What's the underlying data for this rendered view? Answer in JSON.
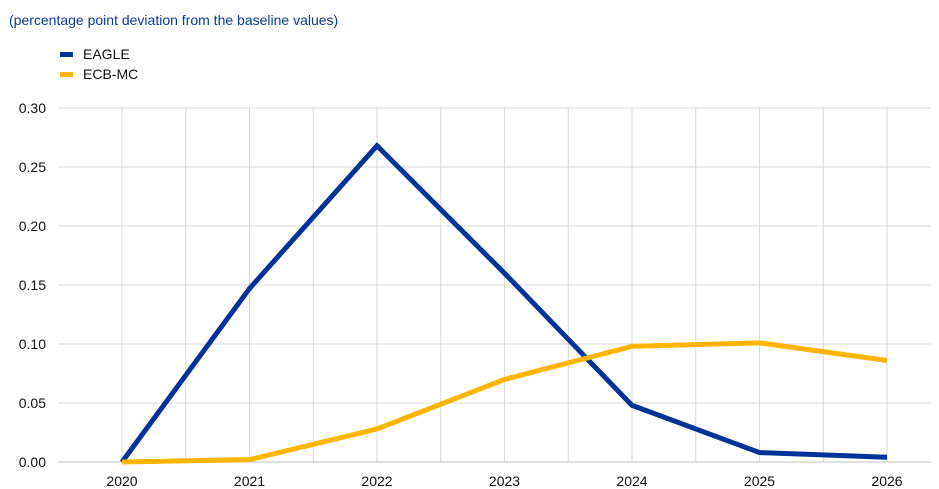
{
  "chart_data": {
    "type": "line",
    "title": "",
    "subtitle": "(percentage point deviation from the baseline values)",
    "xlabel": "",
    "ylabel": "",
    "categories": [
      "2020",
      "2021",
      "2022",
      "2023",
      "2024",
      "2025",
      "2026"
    ],
    "x_grid_ticks": [
      2020,
      2020.5,
      2021,
      2021.5,
      2022,
      2022.5,
      2023,
      2023.5,
      2024,
      2024.5,
      2025,
      2025.5,
      2026,
      2026.5
    ],
    "y_ticks": [
      "0.00",
      "0.05",
      "0.10",
      "0.15",
      "0.20",
      "0.25",
      "0.30"
    ],
    "ylim": [
      0,
      0.3
    ],
    "grid": true,
    "legend_position": "top-left",
    "series": [
      {
        "name": "EAGLE",
        "color": "#003399",
        "values": [
          0.0,
          0.147,
          0.268,
          0.16,
          0.048,
          0.008,
          0.004
        ]
      },
      {
        "name": "ECB-MC",
        "color": "#FFB400",
        "values": [
          0.0,
          0.002,
          0.028,
          0.07,
          0.098,
          0.101,
          0.086
        ]
      }
    ]
  }
}
